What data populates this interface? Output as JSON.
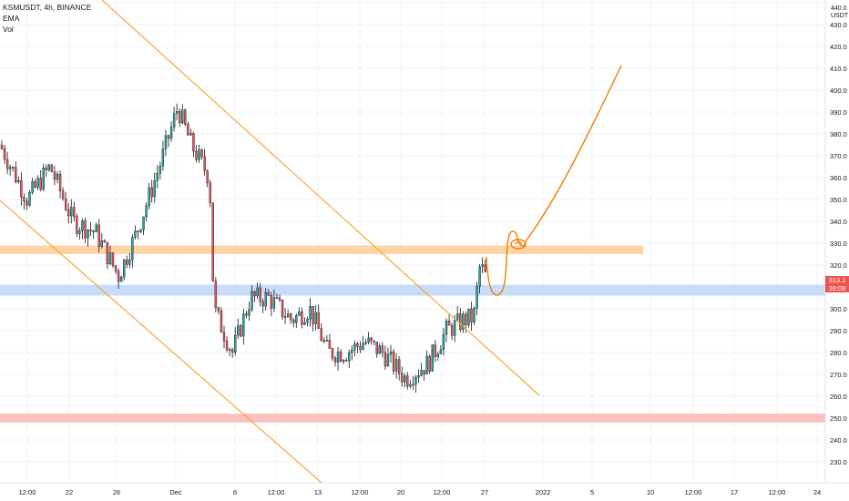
{
  "legend": {
    "symbol_line": "KSMUSDT, 4h, BINANCE",
    "ema": "EMA",
    "vol": "Vol"
  },
  "axis": {
    "currency": "USDT",
    "price_label": "313.1",
    "countdown": "39:08",
    "y_top_label": "440.0"
  },
  "colors": {
    "up": "#26a69a",
    "down": "#ef5350",
    "wick": "#131722",
    "channel": "#f7a935",
    "projection": "#f57c00",
    "resistance_zone": "#ffcc99",
    "support_zone": "#bdd7f9",
    "demand_zone": "#f9b4b4",
    "grid": "#f0f3fa"
  },
  "chart_data": {
    "type": "candlestick",
    "title": "KSMUSDT, 4h, BINANCE",
    "ylim": [
      225,
      442
    ],
    "y_ticks": [
      230,
      240,
      250,
      260,
      270,
      280,
      290,
      300,
      310,
      320,
      330,
      340,
      350,
      360,
      370,
      380,
      390,
      400,
      410,
      420,
      430,
      440
    ],
    "x_tick_labels": [
      "12:00",
      "22",
      "26",
      "Dec",
      "6",
      "12:00",
      "13",
      "12:00",
      "20",
      "12:00",
      "27",
      "2022",
      "5",
      "10",
      "12:00",
      "17",
      "12:00",
      "24"
    ],
    "last_price": 313.1,
    "zones": [
      {
        "name": "resistance",
        "from": 325,
        "to": 329
      },
      {
        "name": "support",
        "from": 306,
        "to": 311
      },
      {
        "name": "demand",
        "from": 248,
        "to": 252
      }
    ],
    "price_path": [
      [
        0,
        375
      ],
      [
        30,
        350
      ],
      [
        55,
        365
      ],
      [
        80,
        340
      ],
      [
        105,
        335
      ],
      [
        130,
        315
      ],
      [
        150,
        335
      ],
      [
        175,
        365
      ],
      [
        195,
        392
      ],
      [
        210,
        375
      ],
      [
        230,
        360
      ],
      [
        235,
        300
      ],
      [
        255,
        280
      ],
      [
        275,
        305
      ],
      [
        295,
        305
      ],
      [
        320,
        295
      ],
      [
        340,
        300
      ],
      [
        360,
        280
      ],
      [
        380,
        280
      ],
      [
        400,
        285
      ],
      [
        420,
        280
      ],
      [
        445,
        268
      ],
      [
        470,
        275
      ],
      [
        490,
        290
      ],
      [
        510,
        295
      ],
      [
        520,
        296
      ],
      [
        527,
        320
      ],
      [
        535,
        313
      ]
    ]
  }
}
